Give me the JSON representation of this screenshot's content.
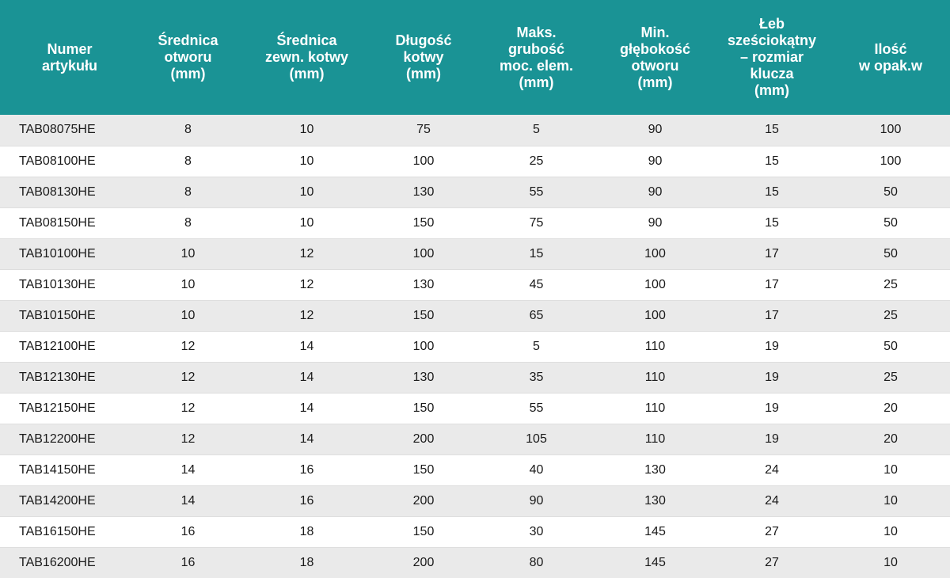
{
  "table": {
    "headers": [
      "Numer\nartykułu",
      "Średnica\notworu\n(mm)",
      "Średnica\nzewn.  kotwy\n(mm)",
      "Długość\nkotwy\n(mm)",
      "Maks.\ngrubość\nmoc. elem.\n(mm)",
      "Min.\ngłębokość\notworu\n(mm)",
      "Łeb\nsześciokątny\n– rozmiar\nklucza\n(mm)",
      "Ilość\nw opak.w"
    ],
    "rows": [
      [
        "TAB08075HE",
        "8",
        "10",
        "75",
        "5",
        "90",
        "15",
        "100"
      ],
      [
        "TAB08100HE",
        "8",
        "10",
        "100",
        "25",
        "90",
        "15",
        "100"
      ],
      [
        "TAB08130HE",
        "8",
        "10",
        "130",
        "55",
        "90",
        "15",
        "50"
      ],
      [
        "TAB08150HE",
        "8",
        "10",
        "150",
        "75",
        "90",
        "15",
        "50"
      ],
      [
        "TAB10100HE",
        "10",
        "12",
        "100",
        "15",
        "100",
        "17",
        "50"
      ],
      [
        "TAB10130HE",
        "10",
        "12",
        "130",
        "45",
        "100",
        "17",
        "25"
      ],
      [
        "TAB10150HE",
        "10",
        "12",
        "150",
        "65",
        "100",
        "17",
        "25"
      ],
      [
        "TAB12100HE",
        "12",
        "14",
        "100",
        "5",
        "110",
        "19",
        "50"
      ],
      [
        "TAB12130HE",
        "12",
        "14",
        "130",
        "35",
        "110",
        "19",
        "25"
      ],
      [
        "TAB12150HE",
        "12",
        "14",
        "150",
        "55",
        "110",
        "19",
        "20"
      ],
      [
        "TAB12200HE",
        "12",
        "14",
        "200",
        "105",
        "110",
        "19",
        "20"
      ],
      [
        "TAB14150HE",
        "14",
        "16",
        "150",
        "40",
        "130",
        "24",
        "10"
      ],
      [
        "TAB14200HE",
        "14",
        "16",
        "200",
        "90",
        "130",
        "24",
        "10"
      ],
      [
        "TAB16150HE",
        "16",
        "18",
        "150",
        "30",
        "145",
        "27",
        "10"
      ],
      [
        "TAB16200HE",
        "16",
        "18",
        "200",
        "80",
        "145",
        "27",
        "10"
      ]
    ]
  },
  "colors": {
    "header_bg": "#1a9395",
    "header_text": "#ffffff",
    "row_alt": "#eaeaea",
    "row": "#ffffff"
  }
}
